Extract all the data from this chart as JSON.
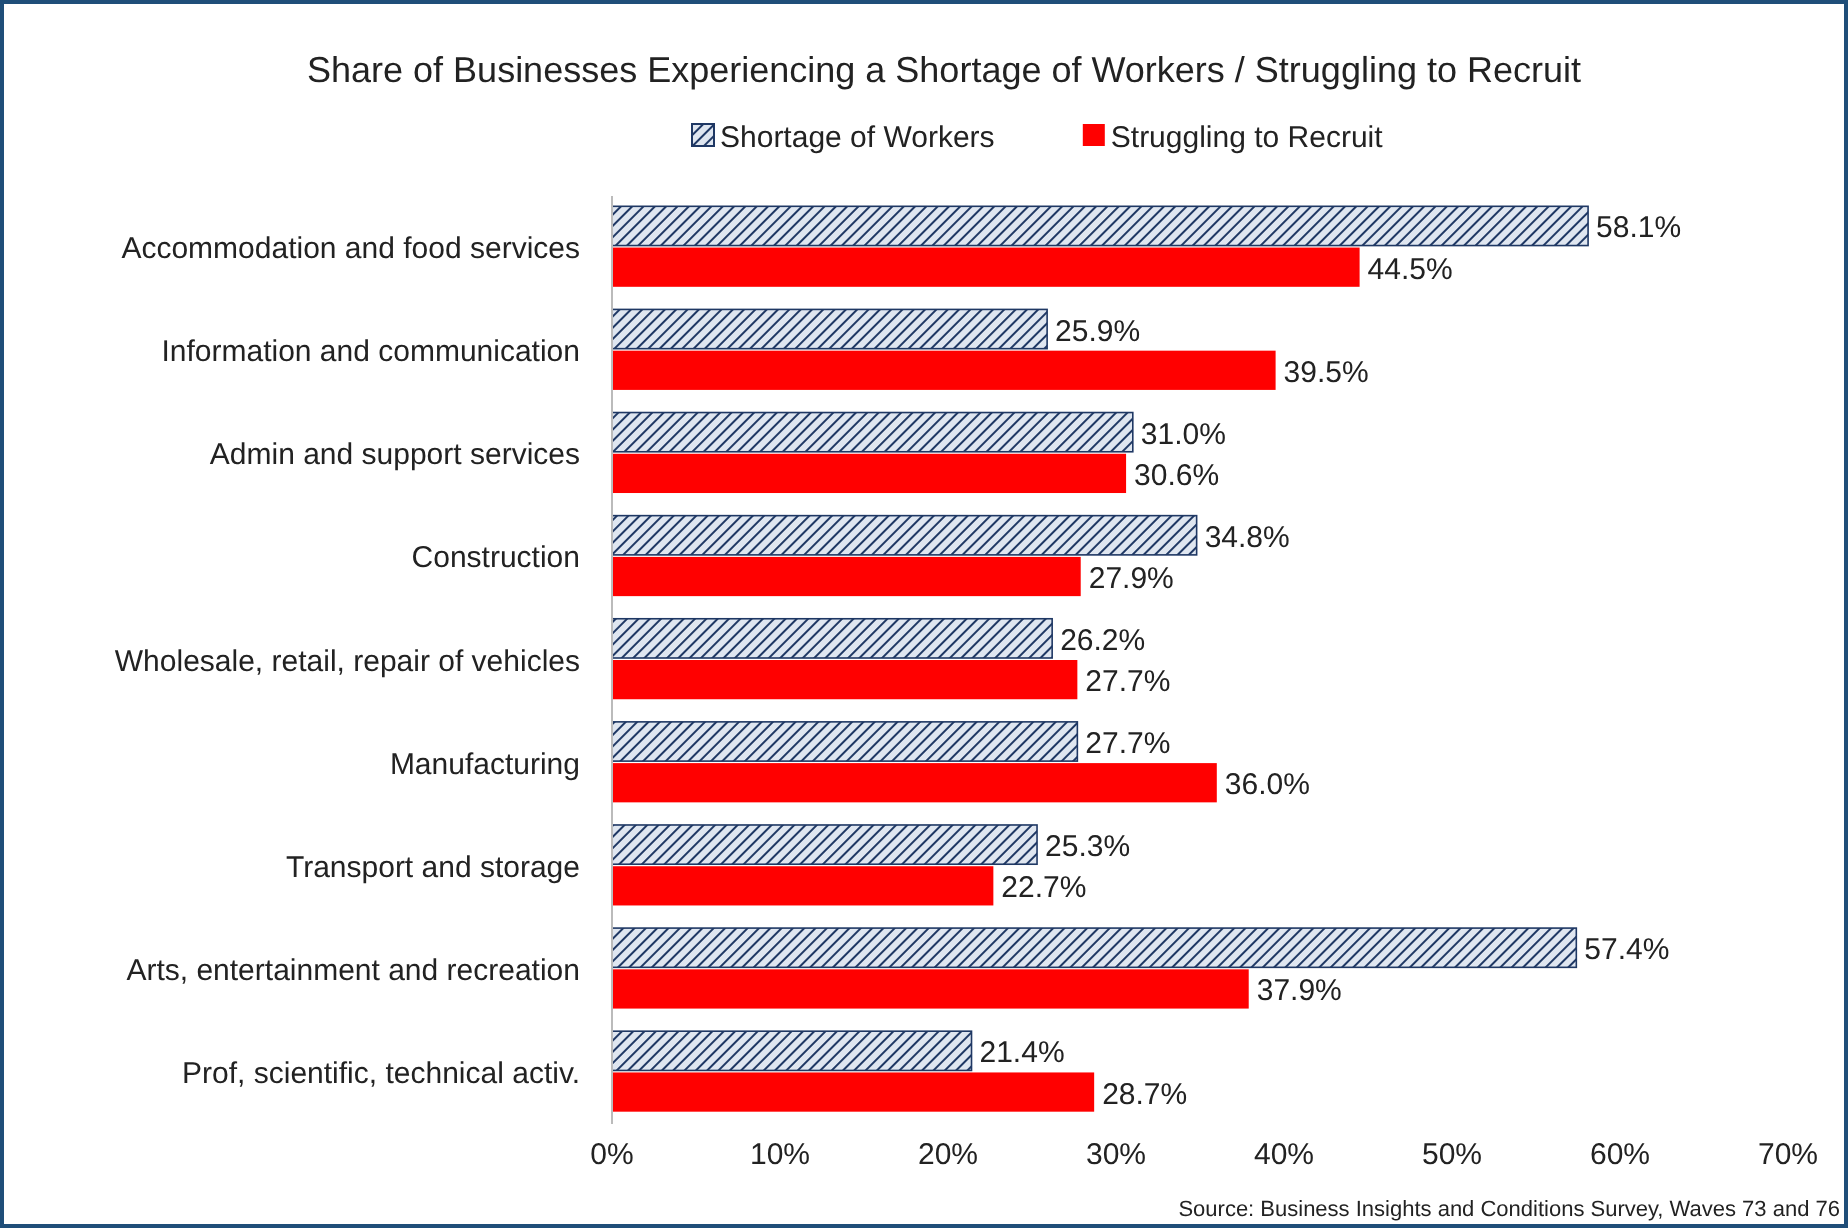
{
  "chart_data": {
    "type": "bar",
    "orientation": "horizontal",
    "title": "Share of Businesses Experiencing a Shortage of Workers / Struggling to Recruit",
    "categories": [
      "Accommodation and food services",
      "Information and communication",
      "Admin and support services",
      "Construction",
      "Wholesale, retail, repair of vehicles",
      "Manufacturing",
      "Transport and storage",
      "Arts, entertainment and recreation",
      "Prof, scientific, technical activ."
    ],
    "series": [
      {
        "name": "Shortage of Workers",
        "color": "#1f3864",
        "values": [
          58.1,
          25.9,
          31.0,
          34.8,
          26.2,
          27.7,
          25.3,
          57.4,
          21.4
        ],
        "value_labels": [
          "58.1%",
          "25.9%",
          "31.0%",
          "34.8%",
          "26.2%",
          "27.7%",
          "25.3%",
          "57.4%",
          "21.4%"
        ]
      },
      {
        "name": "Struggling to Recruit",
        "color": "#ff0000",
        "values": [
          44.5,
          39.5,
          30.6,
          27.9,
          27.7,
          36.0,
          22.7,
          37.9,
          28.7
        ],
        "value_labels": [
          "44.5%",
          "39.5%",
          "30.6%",
          "27.9%",
          "27.7%",
          "36.0%",
          "22.7%",
          "37.9%",
          "28.7%"
        ]
      }
    ],
    "xlim": [
      0,
      70
    ],
    "xticks": [
      {
        "value": 0,
        "label": "0%"
      },
      {
        "value": 10,
        "label": "10%"
      },
      {
        "value": 20,
        "label": "20%"
      },
      {
        "value": 30,
        "label": "30%"
      },
      {
        "value": 40,
        "label": "40%"
      },
      {
        "value": 50,
        "label": "50%"
      },
      {
        "value": 60,
        "label": "60%"
      },
      {
        "value": 70,
        "label": "70%"
      }
    ],
    "legend": "top",
    "annotations": [
      "Source: Business Insights and Conditions Survey, Waves 73 and 76"
    ]
  }
}
